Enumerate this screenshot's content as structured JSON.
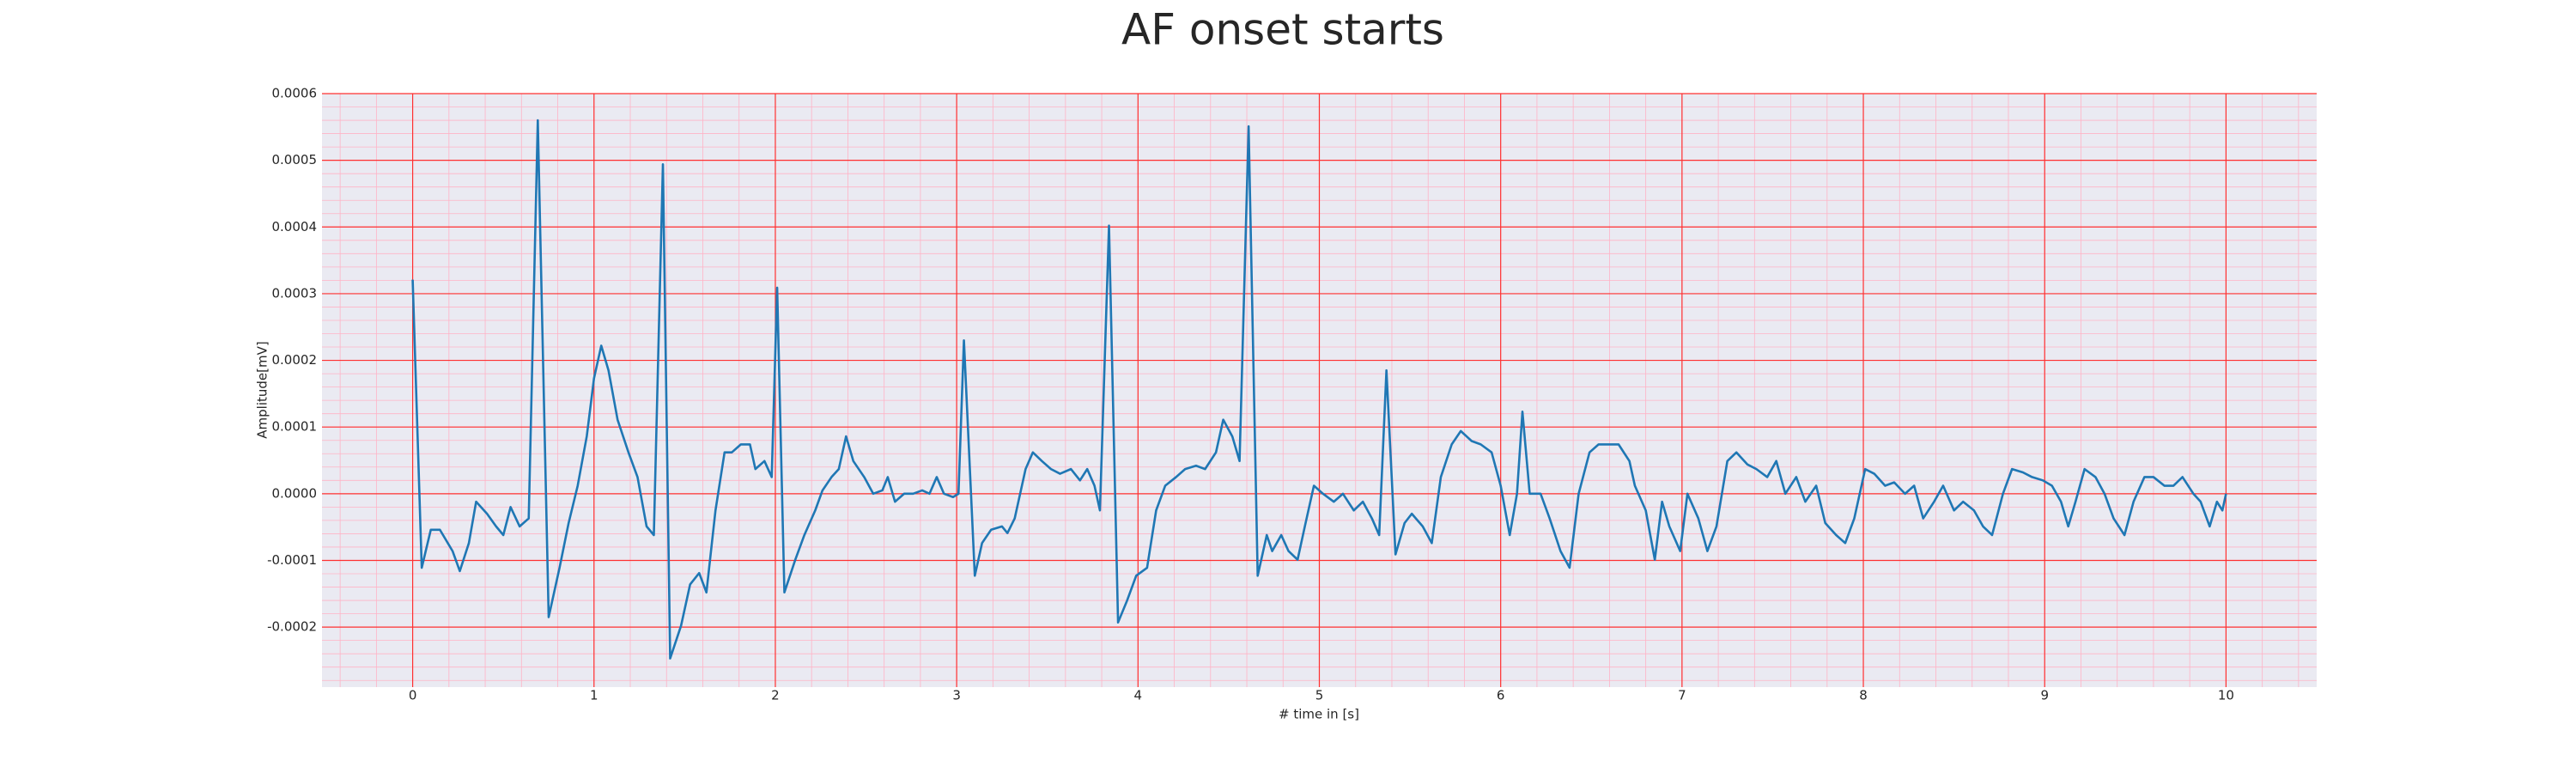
{
  "chart_data": {
    "type": "line",
    "title": "AF onset starts",
    "xlabel": "# time in [s]",
    "ylabel": "Amplitude[mV]",
    "color": "#1f77b4",
    "grid": true,
    "minor_grid": true,
    "xlim": [
      -0.5,
      10.5
    ],
    "xticks": [
      0,
      1,
      2,
      3,
      4,
      5,
      6,
      7,
      8,
      9,
      10
    ],
    "ylim": [
      -0.00029,
      0.0006
    ],
    "yticks": [
      {
        "value": -0.0002,
        "label": "-0.0002"
      },
      {
        "value": -0.0001,
        "label": "-0.0001"
      },
      {
        "value": 0,
        "label": "0.0000"
      },
      {
        "value": 0.0001,
        "label": "0.0001"
      },
      {
        "value": 0.0002,
        "label": "0.0002"
      },
      {
        "value": 0.0003,
        "label": "0.0003"
      },
      {
        "value": 0.0004,
        "label": "0.0004"
      },
      {
        "value": 0.0005,
        "label": "0.0005"
      },
      {
        "value": 0.0006,
        "label": "0.0006"
      }
    ],
    "x": [
      0,
      0.05,
      0.1,
      0.15,
      0.22,
      0.26,
      0.31,
      0.35,
      0.41,
      0.46,
      0.5,
      0.54,
      0.59,
      0.64,
      0.69,
      0.75,
      0.81,
      0.86,
      0.91,
      0.96,
      1.0,
      1.04,
      1.08,
      1.13,
      1.19,
      1.24,
      1.29,
      1.33,
      1.38,
      1.42,
      1.48,
      1.53,
      1.58,
      1.62,
      1.67,
      1.72,
      1.76,
      1.81,
      1.86,
      1.89,
      1.94,
      1.98,
      2.01,
      2.05,
      2.11,
      2.16,
      2.22,
      2.26,
      2.31,
      2.35,
      2.39,
      2.43,
      2.49,
      2.54,
      2.59,
      2.62,
      2.66,
      2.71,
      2.76,
      2.81,
      2.85,
      2.89,
      2.93,
      2.98,
      3.01,
      3.04,
      3.1,
      3.14,
      3.19,
      3.25,
      3.28,
      3.32,
      3.38,
      3.42,
      3.47,
      3.52,
      3.57,
      3.63,
      3.68,
      3.72,
      3.76,
      3.79,
      3.84,
      3.89,
      3.94,
      3.99,
      4.05,
      4.1,
      4.15,
      4.21,
      4.26,
      4.32,
      4.37,
      4.43,
      4.47,
      4.52,
      4.56,
      4.61,
      4.66,
      4.71,
      4.74,
      4.79,
      4.83,
      4.88,
      4.92,
      4.97,
      5.02,
      5.08,
      5.13,
      5.19,
      5.24,
      5.29,
      5.33,
      5.37,
      5.42,
      5.47,
      5.51,
      5.57,
      5.62,
      5.67,
      5.73,
      5.78,
      5.84,
      5.89,
      5.95,
      6.0,
      6.05,
      6.09,
      6.12,
      6.16,
      6.22,
      6.27,
      6.33,
      6.38,
      6.43,
      6.49,
      6.54,
      6.6,
      6.65,
      6.71,
      6.74,
      6.8,
      6.85,
      6.89,
      6.93,
      6.99,
      7.03,
      7.09,
      7.14,
      7.19,
      7.25,
      7.3,
      7.36,
      7.41,
      7.47,
      7.52,
      7.57,
      7.63,
      7.68,
      7.74,
      7.79,
      7.85,
      7.9,
      7.95,
      8.01,
      8.06,
      8.12,
      8.17,
      8.23,
      8.28,
      8.33,
      8.39,
      8.44,
      8.5,
      8.55,
      8.61,
      8.66,
      8.71,
      8.77,
      8.82,
      8.88,
      8.93,
      8.99,
      9.04,
      9.09,
      9.13,
      9.17,
      9.22,
      9.28,
      9.33,
      9.38,
      9.44,
      9.49,
      9.55,
      9.6,
      9.66,
      9.71,
      9.76,
      9.82,
      9.86,
      9.91,
      9.95,
      9.98,
      10.0
    ],
    "values": [
      0.000321,
      -0.000111,
      -5.4e-05,
      -5.4e-05,
      -8.6e-05,
      -0.000116,
      -7.4e-05,
      -1.2e-05,
      -3e-05,
      -4.9e-05,
      -6.2e-05,
      -2e-05,
      -4.9e-05,
      -3.7e-05,
      0.00056,
      -0.000185,
      -0.000111,
      -4.4e-05,
      1.2e-05,
      8.6e-05,
      0.000173,
      0.000222,
      0.000185,
      0.000111,
      6.2e-05,
      2.5e-05,
      -4.9e-05,
      -6.2e-05,
      0.000494,
      -0.000247,
      -0.000198,
      -0.000136,
      -0.000119,
      -0.000148,
      -2.5e-05,
      6.2e-05,
      6.2e-05,
      7.4e-05,
      7.4e-05,
      3.7e-05,
      4.9e-05,
      2.5e-05,
      0.000309,
      -0.000148,
      -9.9e-05,
      -6.2e-05,
      -2.5e-05,
      5e-06,
      2.5e-05,
      3.7e-05,
      8.6e-05,
      4.9e-05,
      2.5e-05,
      0,
      5e-06,
      2.5e-05,
      -1.2e-05,
      0,
      0,
      5e-06,
      0,
      2.5e-05,
      0,
      -5e-06,
      0,
      0.00023,
      -0.000123,
      -7.4e-05,
      -5.4e-05,
      -4.9e-05,
      -5.9e-05,
      -3.7e-05,
      3.7e-05,
      6.2e-05,
      4.9e-05,
      3.7e-05,
      3e-05,
      3.7e-05,
      2e-05,
      3.7e-05,
      1.2e-05,
      -2.5e-05,
      0.000402,
      -0.000193,
      -0.00016,
      -0.000123,
      -0.000111,
      -2.5e-05,
      1.2e-05,
      2.5e-05,
      3.7e-05,
      4.2e-05,
      3.7e-05,
      6.2e-05,
      0.000111,
      8.6e-05,
      4.9e-05,
      0.000551,
      -0.000123,
      -6.2e-05,
      -8.6e-05,
      -6.2e-05,
      -8.6e-05,
      -9.9e-05,
      -4.9e-05,
      1.2e-05,
      0,
      -1.2e-05,
      0,
      -2.5e-05,
      -1.2e-05,
      -3.7e-05,
      -6.2e-05,
      0.000185,
      -9.1e-05,
      -4.4e-05,
      -3e-05,
      -4.9e-05,
      -7.4e-05,
      2.5e-05,
      7.4e-05,
      9.4e-05,
      7.9e-05,
      7.4e-05,
      6.2e-05,
      1.2e-05,
      -6.2e-05,
      0,
      0.000123,
      0,
      0,
      -3.7e-05,
      -8.6e-05,
      -0.000111,
      0,
      6.2e-05,
      7.4e-05,
      7.4e-05,
      7.4e-05,
      4.9e-05,
      1.2e-05,
      -2.5e-05,
      -9.9e-05,
      -1.2e-05,
      -4.9e-05,
      -8.6e-05,
      0,
      -3.7e-05,
      -8.6e-05,
      -4.9e-05,
      4.9e-05,
      6.2e-05,
      4.4e-05,
      3.7e-05,
      2.5e-05,
      4.9e-05,
      0,
      2.5e-05,
      -1.2e-05,
      1.2e-05,
      -4.4e-05,
      -6.2e-05,
      -7.4e-05,
      -3.7e-05,
      3.7e-05,
      3e-05,
      1.2e-05,
      1.7e-05,
      0,
      1.2e-05,
      -3.7e-05,
      -1.2e-05,
      1.2e-05,
      -2.5e-05,
      -1.2e-05,
      -2.5e-05,
      -4.9e-05,
      -6.2e-05,
      0,
      3.7e-05,
      3.2e-05,
      2.5e-05,
      2e-05,
      1.2e-05,
      -1.2e-05,
      -4.9e-05,
      -1.2e-05,
      3.7e-05,
      2.5e-05,
      0,
      -3.7e-05,
      -6.2e-05,
      -1.2e-05,
      2.5e-05,
      2.5e-05,
      1.2e-05,
      1.2e-05,
      2.5e-05,
      0,
      -1.2e-05,
      -4.9e-05,
      -1.2e-05,
      -2.5e-05,
      0
    ]
  }
}
